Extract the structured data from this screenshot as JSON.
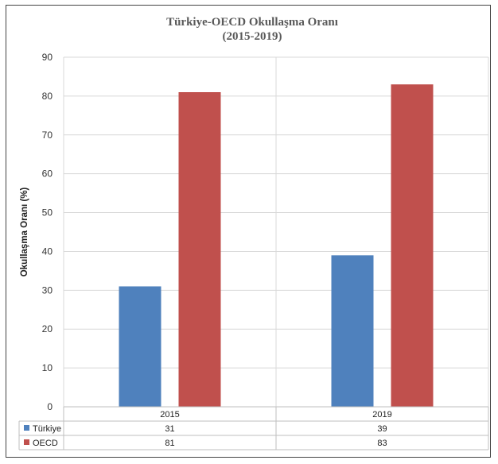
{
  "chart_data": {
    "type": "bar",
    "title": "Türkiye-OECD Okullaşma Oranı",
    "subtitle": "(2015-2019)",
    "ylabel": "Okullaşma Oranı (%)",
    "xlabel": "",
    "categories": [
      "2015",
      "2019"
    ],
    "series": [
      {
        "name": "Türkiye",
        "values": [
          31,
          39
        ],
        "color": "#4F81BD"
      },
      {
        "name": "OECD",
        "values": [
          81,
          83
        ],
        "color": "#C0504D"
      }
    ],
    "ylim": [
      0,
      90
    ],
    "yticks": [
      0,
      10,
      20,
      30,
      40,
      50,
      60,
      70,
      80,
      90
    ],
    "grid": true,
    "legend": "data-table"
  }
}
